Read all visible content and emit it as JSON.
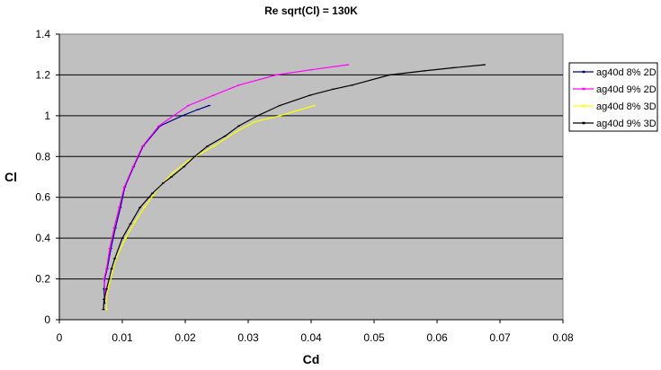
{
  "chart_data": {
    "type": "line",
    "title": "Re sqrt(Cl) = 130K",
    "xlabel": "Cd",
    "ylabel": "Cl",
    "xlim": [
      0,
      0.08
    ],
    "ylim": [
      0,
      1.4
    ],
    "xticks": [
      "0",
      "0.01",
      "0.02",
      "0.03",
      "0.04",
      "0.05",
      "0.06",
      "0.07",
      "0.08"
    ],
    "yticks": [
      "0",
      "0.2",
      "0.4",
      "0.6",
      "0.8",
      "1",
      "1.2",
      "1.4"
    ],
    "grid": "horizontal",
    "plot_background": "#c0c0c0",
    "legend_position": "right",
    "series": [
      {
        "name": "ag40d 8% 2D",
        "color": "#000080",
        "points": [
          [
            0.0072,
            0.08
          ],
          [
            0.0071,
            0.15
          ],
          [
            0.0072,
            0.2
          ],
          [
            0.0076,
            0.25
          ],
          [
            0.0082,
            0.35
          ],
          [
            0.0089,
            0.45
          ],
          [
            0.0097,
            0.55
          ],
          [
            0.0104,
            0.65
          ],
          [
            0.0118,
            0.75
          ],
          [
            0.0133,
            0.85
          ],
          [
            0.016,
            0.95
          ],
          [
            0.0195,
            1.0
          ],
          [
            0.022,
            1.03
          ],
          [
            0.0238,
            1.05
          ]
        ]
      },
      {
        "name": "ag40d 9% 2D",
        "color": "#ff00ff",
        "points": [
          [
            0.0073,
            0.1
          ],
          [
            0.0071,
            0.2
          ],
          [
            0.0075,
            0.25
          ],
          [
            0.008,
            0.35
          ],
          [
            0.0087,
            0.45
          ],
          [
            0.0095,
            0.55
          ],
          [
            0.0103,
            0.65
          ],
          [
            0.0117,
            0.75
          ],
          [
            0.0132,
            0.85
          ],
          [
            0.0158,
            0.95
          ],
          [
            0.0205,
            1.05
          ],
          [
            0.0245,
            1.1
          ],
          [
            0.0285,
            1.15
          ],
          [
            0.0345,
            1.2
          ],
          [
            0.04,
            1.225
          ],
          [
            0.0458,
            1.25
          ]
        ]
      },
      {
        "name": "ag40d 8% 3D",
        "color": "#ffff00",
        "points": [
          [
            0.0075,
            0.05
          ],
          [
            0.0074,
            0.1
          ],
          [
            0.0077,
            0.15
          ],
          [
            0.0081,
            0.2
          ],
          [
            0.0085,
            0.25
          ],
          [
            0.009,
            0.3
          ],
          [
            0.0105,
            0.4
          ],
          [
            0.012,
            0.48
          ],
          [
            0.0135,
            0.55
          ],
          [
            0.0158,
            0.65
          ],
          [
            0.018,
            0.72
          ],
          [
            0.0205,
            0.78
          ],
          [
            0.0245,
            0.85
          ],
          [
            0.028,
            0.92
          ],
          [
            0.031,
            0.97
          ],
          [
            0.035,
            1.0
          ],
          [
            0.0405,
            1.05
          ]
        ]
      },
      {
        "name": "ag40d 9% 3D",
        "color": "#000000",
        "points": [
          [
            0.007,
            0.05
          ],
          [
            0.0071,
            0.1
          ],
          [
            0.0075,
            0.15
          ],
          [
            0.0079,
            0.2
          ],
          [
            0.0083,
            0.25
          ],
          [
            0.0088,
            0.3
          ],
          [
            0.01,
            0.4
          ],
          [
            0.0113,
            0.47
          ],
          [
            0.0128,
            0.55
          ],
          [
            0.0148,
            0.62
          ],
          [
            0.0165,
            0.67
          ],
          [
            0.0178,
            0.7
          ],
          [
            0.0198,
            0.75
          ],
          [
            0.0215,
            0.8
          ],
          [
            0.0235,
            0.85
          ],
          [
            0.0263,
            0.9
          ],
          [
            0.0285,
            0.95
          ],
          [
            0.0315,
            1.0
          ],
          [
            0.035,
            1.05
          ],
          [
            0.0398,
            1.1
          ],
          [
            0.0435,
            1.13
          ],
          [
            0.0465,
            1.15
          ],
          [
            0.0525,
            1.2
          ],
          [
            0.058,
            1.22
          ],
          [
            0.0625,
            1.235
          ],
          [
            0.0675,
            1.25
          ]
        ]
      }
    ]
  }
}
